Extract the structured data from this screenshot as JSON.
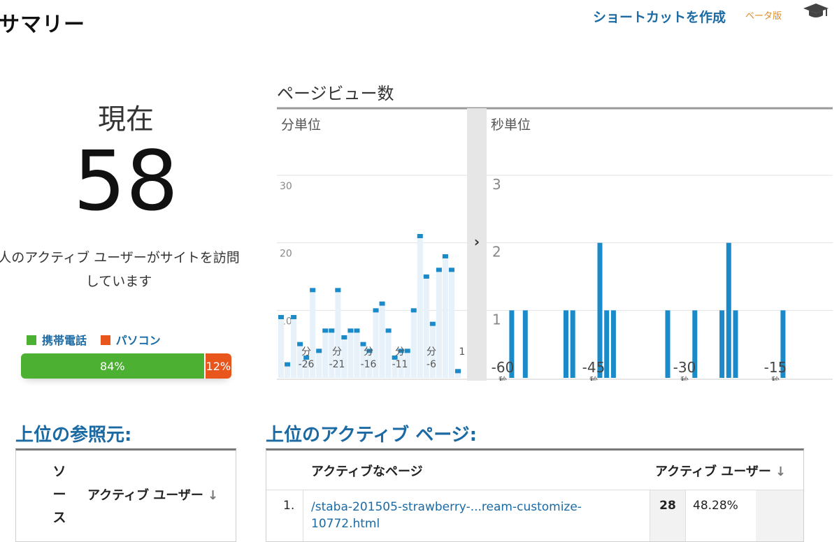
{
  "header": {
    "title": "サマリー",
    "shortcut_label": "ショートカットを作成",
    "beta_label": "ベータ版",
    "grad_icon": "graduation-cap-icon"
  },
  "realtime": {
    "now_label": "現在",
    "active_users": "58",
    "description_line1": "人のアクティブ ユーザーがサイトを訪問",
    "description_line2": "しています"
  },
  "devices": {
    "legend": [
      {
        "label": "携帯電話",
        "color": "#4cb032"
      },
      {
        "label": "パソコン",
        "color": "#e8561c"
      }
    ],
    "mobile_percent": 84,
    "mobile_label": "84%",
    "pc_percent": 12,
    "pc_label": "12%"
  },
  "chart_data": [
    {
      "type": "bar",
      "title": "ページビュー数",
      "subtitle": "分単位",
      "ylim": [
        0,
        30
      ],
      "y_ticks": [
        "10",
        "20",
        "30"
      ],
      "x_tick_labels": [
        "分 -26",
        "分 -21",
        "分 -16",
        "分 -11",
        "分 -6",
        "1"
      ],
      "values": [
        9,
        2,
        9,
        5,
        3,
        13,
        4,
        7,
        7,
        13,
        6,
        7,
        7,
        5,
        4,
        10,
        11,
        7,
        3,
        4,
        4,
        10,
        21,
        15,
        8,
        16,
        18,
        16,
        1
      ]
    },
    {
      "type": "bar",
      "subtitle": "秒単位",
      "ylim": [
        0,
        3
      ],
      "y_ticks": [
        "1",
        "2",
        "3"
      ],
      "x_tick_labels": [
        "-60 秒",
        "-45 秒",
        "-30 秒",
        "-15 秒"
      ],
      "values": [
        0,
        0,
        1,
        0,
        1,
        0,
        0,
        0,
        0,
        0,
        1,
        1,
        0,
        0,
        0,
        2,
        1,
        1,
        0,
        0,
        0,
        0,
        0,
        0,
        0,
        1,
        0,
        0,
        0,
        1,
        0,
        0,
        0,
        1,
        2,
        1,
        0,
        0,
        0,
        0,
        0,
        0,
        1,
        0,
        0,
        0,
        0,
        0,
        0,
        0
      ]
    }
  ],
  "referrals": {
    "title": "上位の参照元:",
    "col_source": "ソース",
    "col_users": "アクティブ ユーザー",
    "sort_icon": "arrow-down-icon"
  },
  "active_pages": {
    "title": "上位のアクティブ ページ:",
    "col_page": "アクティブなページ",
    "col_users": "アクティブ ユーザー",
    "rows": [
      {
        "index": "1.",
        "page": "/staba-201505-strawberry-...ream-customize-10772.html",
        "users": "28",
        "percent": "48.28%"
      }
    ]
  }
}
